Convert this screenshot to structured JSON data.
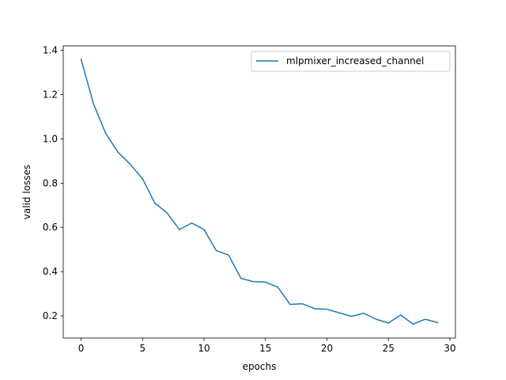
{
  "chart_data": {
    "type": "line",
    "title": "",
    "xlabel": "epochs",
    "ylabel": "valid losses",
    "xlim": [
      -1.45,
      30.45
    ],
    "ylim": [
      0.1,
      1.42
    ],
    "xticks": [
      0,
      5,
      10,
      15,
      20,
      25,
      30
    ],
    "yticks": [
      0.2,
      0.4,
      0.6,
      0.8,
      1.0,
      1.2,
      1.4
    ],
    "grid": false,
    "legend_position": "top-right",
    "series": [
      {
        "name": "mlpmixer_increased_channel",
        "color": "#1f77b4",
        "x": [
          0,
          1,
          2,
          3,
          4,
          5,
          6,
          7,
          8,
          9,
          10,
          11,
          12,
          13,
          14,
          15,
          16,
          17,
          18,
          19,
          20,
          21,
          22,
          23,
          24,
          25,
          26,
          27,
          28,
          29
        ],
        "y": [
          1.36,
          1.16,
          1.025,
          0.94,
          0.885,
          0.82,
          0.71,
          0.665,
          0.59,
          0.62,
          0.59,
          0.495,
          0.475,
          0.37,
          0.355,
          0.353,
          0.33,
          0.252,
          0.255,
          0.233,
          0.23,
          0.214,
          0.198,
          0.212,
          0.185,
          0.168,
          0.204,
          0.163,
          0.185,
          0.17
        ]
      }
    ]
  }
}
